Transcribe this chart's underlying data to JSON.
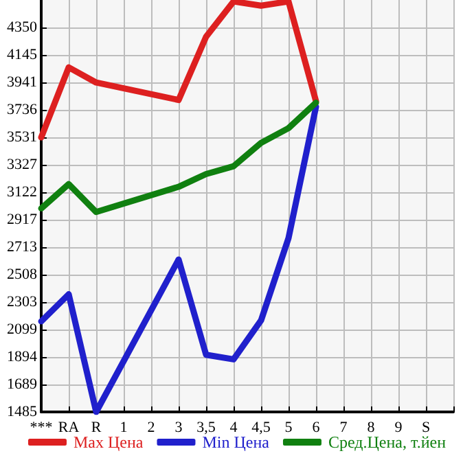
{
  "chart_data": {
    "type": "line",
    "categories": [
      "***",
      "RA",
      "R",
      "1",
      "2",
      "3",
      "3,5",
      "4",
      "4,5",
      "5",
      "6",
      "7",
      "8",
      "9",
      "S",
      null
    ],
    "series": [
      {
        "name": "Max Цена",
        "color": "#dd2020",
        "values": [
          3531,
          4053,
          3940,
          null,
          null,
          3810,
          4281,
          4544,
          4513,
          4544,
          3800,
          null,
          null,
          null,
          null,
          null
        ]
      },
      {
        "name": "Min Цена",
        "color": "#2020cc",
        "values": [
          2160,
          2362,
          1485,
          null,
          null,
          2621,
          1911,
          1877,
          2167,
          2781,
          3760,
          null,
          null,
          null,
          null,
          null
        ]
      },
      {
        "name": "Сред.Цена, т.йен",
        "color": "#108010",
        "values": [
          3002,
          3183,
          2975,
          null,
          null,
          3163,
          3258,
          3316,
          3490,
          3600,
          3790,
          null,
          null,
          null,
          null,
          null
        ]
      }
    ],
    "ylim": [
      1485,
      4555
    ],
    "yticks": [
      1485,
      1689,
      1894,
      2099,
      2303,
      2508,
      2713,
      2917,
      3122,
      3327,
      3531,
      3736,
      3941,
      4145,
      4350
    ],
    "grid": true,
    "legend": "bottom",
    "marker": "none",
    "line_style": "solid"
  }
}
